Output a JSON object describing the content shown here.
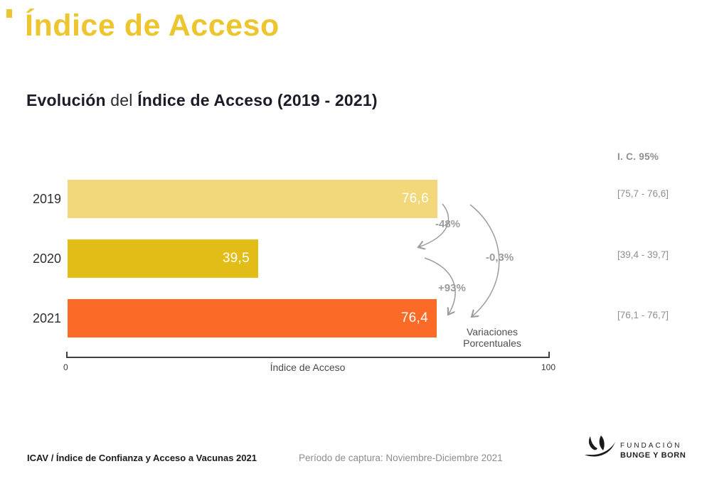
{
  "decor": {
    "accent_color": "#ECC52F"
  },
  "header": {
    "title": "Índice de Acceso"
  },
  "subtitle": {
    "bold1": "Evolución",
    "regular": " del ",
    "bold2": "Índice de Acceso (2019 - 2021)"
  },
  "chart_data": {
    "type": "bar",
    "orientation": "horizontal",
    "title": "Evolución del Índice de Acceso (2019 - 2021)",
    "categories": [
      "2019",
      "2020",
      "2021"
    ],
    "values": [
      76.6,
      39.5,
      76.4
    ],
    "value_labels": [
      "76,6",
      "39,5",
      "76,4"
    ],
    "bar_colors": [
      "#F2D87A",
      "#E2BD18",
      "#FC6A27"
    ],
    "xlabel": "Índice de Acceso",
    "xlim": [
      0,
      100
    ],
    "x_ticks": [
      "0",
      "100"
    ],
    "grid": "off",
    "ci_header": "I. C. 95%",
    "ci": [
      "[75,7 - 76,6]",
      "[39,4 - 39,7]",
      "[76,1 - 76,7]"
    ],
    "variations": [
      {
        "label": "-48%",
        "from": "2019",
        "to": "2020"
      },
      {
        "label": "+93%",
        "from": "2020",
        "to": "2021"
      },
      {
        "label": "-0,3%",
        "from": "2019",
        "to": "2021"
      }
    ],
    "variations_caption": {
      "line1": "Variaciones",
      "line2": "Porcentuales"
    },
    "arrow_color": "#9C9C9C"
  },
  "footer": {
    "source": "ICAV / Índice de Confianza y Acceso a Vacunas 2021",
    "period": "Período de captura: Noviembre-Diciembre 2021",
    "logo_line1": "FUNDACIÓN",
    "logo_line2": "BUNGE Y BORN"
  }
}
